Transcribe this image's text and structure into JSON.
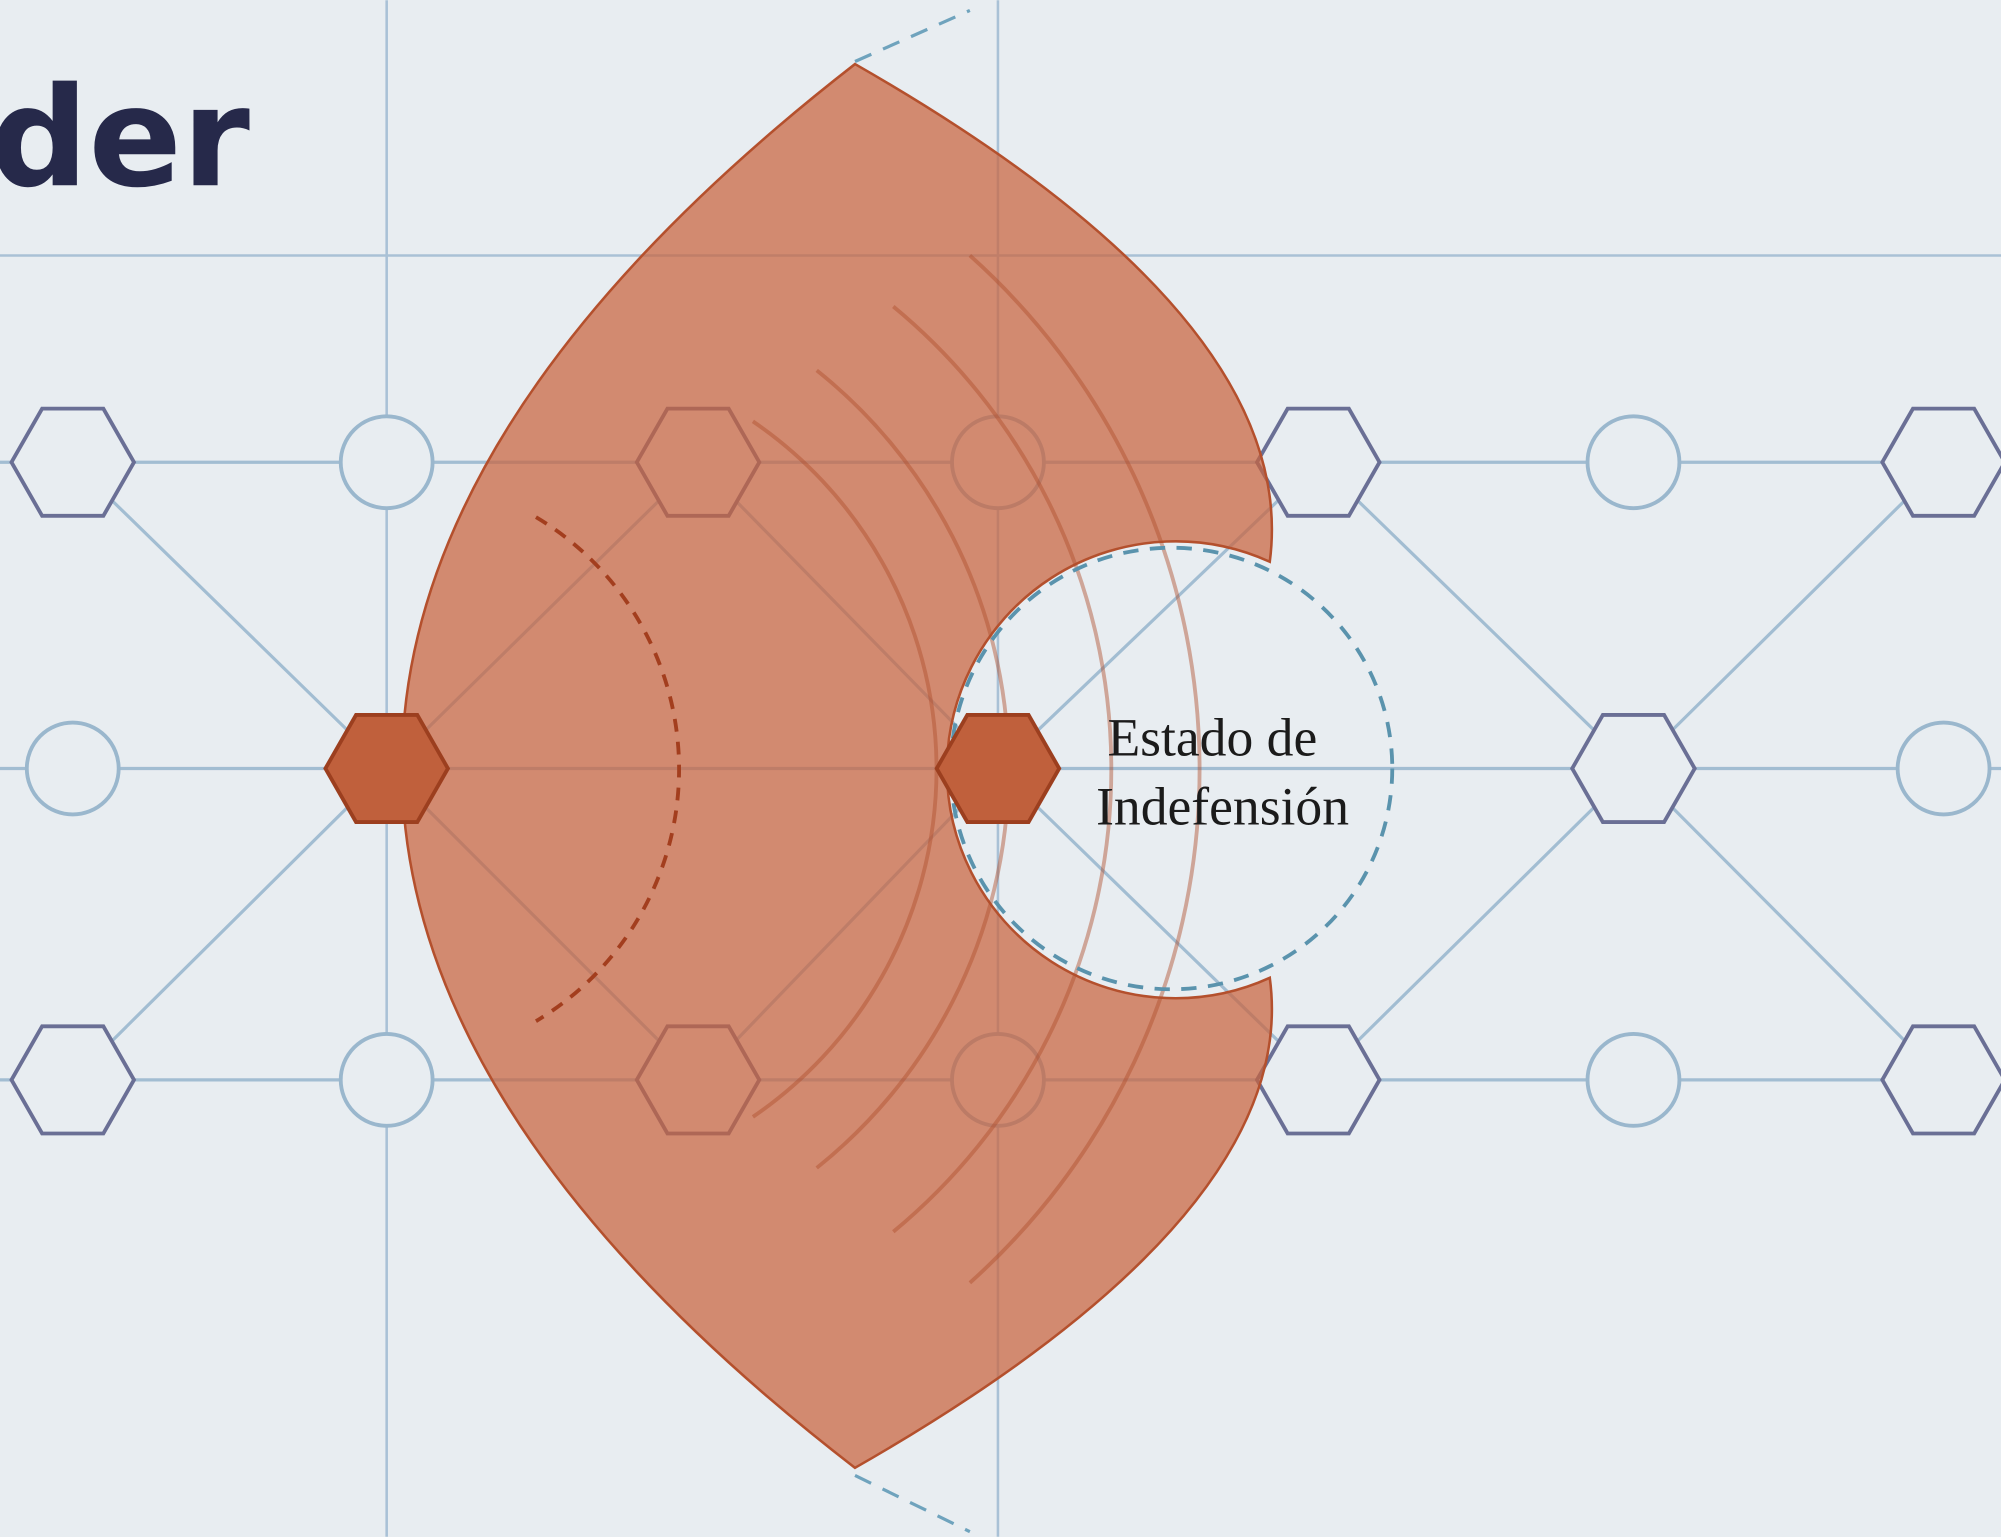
{
  "header": {
    "title": "der"
  },
  "label": {
    "lines": [
      "Estado de",
      "Indefensión"
    ]
  }
}
